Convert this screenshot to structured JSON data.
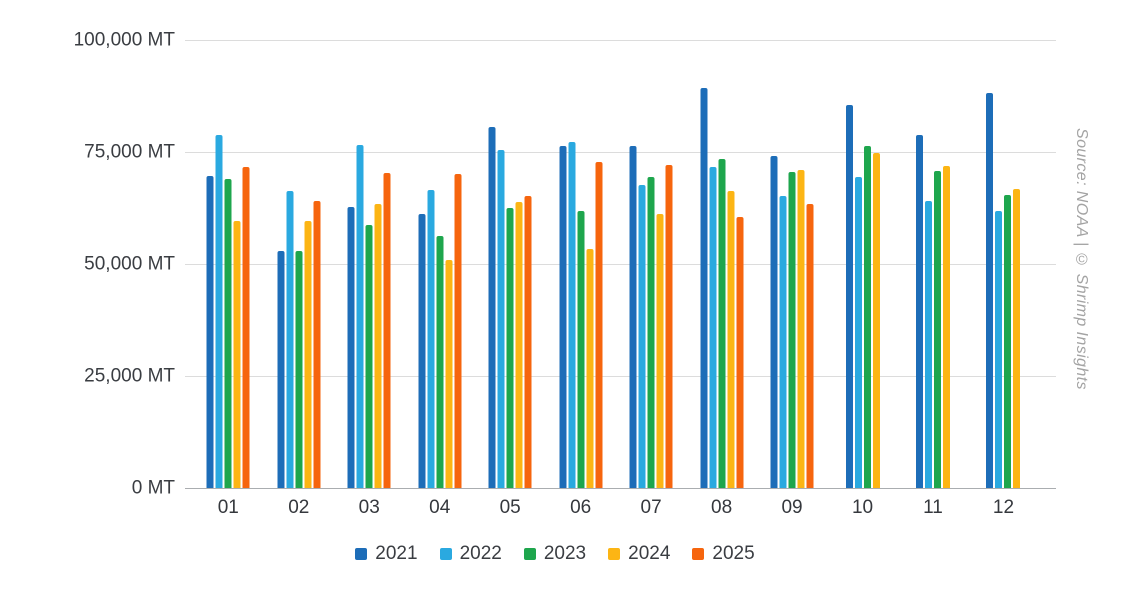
{
  "source_note": "Source: NOAA | © Shrimp Insights",
  "chart_data": {
    "type": "bar",
    "title": "",
    "xlabel": "",
    "ylabel": "MT",
    "ylim": [
      0,
      100000
    ],
    "ytick_step": 25000,
    "yticks_top_to_bottom": [
      "100,000 MT",
      "75,000 MT",
      "50,000 MT",
      "25,000 MT",
      "0 MT"
    ],
    "grid": true,
    "legend_position": "bottom",
    "categories": [
      "01",
      "02",
      "03",
      "04",
      "05",
      "06",
      "07",
      "08",
      "09",
      "10",
      "11",
      "12"
    ],
    "series": [
      {
        "name": "2021",
        "color": "#1d6db8",
        "values": [
          69700,
          52800,
          62700,
          61100,
          80500,
          76400,
          76400,
          89200,
          74000,
          85500,
          78800,
          88200
        ]
      },
      {
        "name": "2022",
        "color": "#2aa9e0",
        "values": [
          78700,
          66200,
          76500,
          66600,
          75400,
          77200,
          67700,
          71600,
          65100,
          69500,
          64100,
          61800
        ]
      },
      {
        "name": "2023",
        "color": "#1ea64d",
        "values": [
          69000,
          53000,
          58800,
          56200,
          62500,
          61900,
          69400,
          73500,
          70600,
          76400,
          70700,
          65300
        ]
      },
      {
        "name": "2024",
        "color": "#fcb514",
        "values": [
          59700,
          59600,
          63500,
          51000,
          63800,
          53300,
          61200,
          66200,
          71000,
          74700,
          71800,
          66800
        ]
      },
      {
        "name": "2025",
        "color": "#f6650e",
        "values": [
          71600,
          64000,
          70300,
          70100,
          65100,
          72700,
          72200,
          60400,
          63400,
          null,
          null,
          null
        ]
      }
    ]
  }
}
